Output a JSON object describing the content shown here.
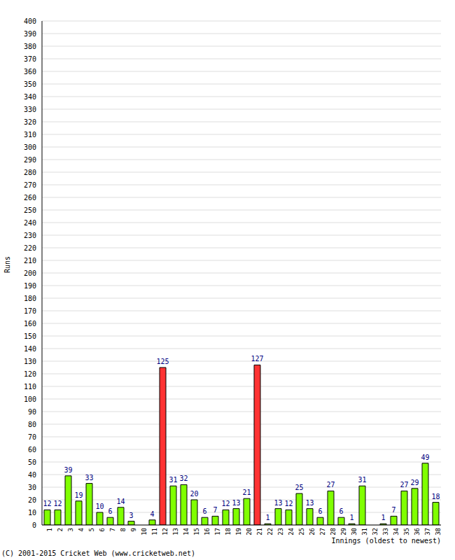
{
  "chart_data": {
    "type": "bar",
    "ylabel": "Runs",
    "xlabel": "Innings (oldest to newest)",
    "annotations": [
      "(C) 2001-2015 Cricket Web (www.cricketweb.net)"
    ],
    "categories": [
      "1",
      "2",
      "3",
      "4",
      "5",
      "6",
      "7",
      "8",
      "9",
      "10",
      "11",
      "12",
      "13",
      "14",
      "15",
      "16",
      "17",
      "18",
      "19",
      "20",
      "21",
      "22",
      "23",
      "24",
      "25",
      "26",
      "27",
      "28",
      "29",
      "30",
      "31",
      "32",
      "33",
      "34",
      "35",
      "36",
      "37",
      "38"
    ],
    "values": [
      12,
      12,
      39,
      19,
      33,
      10,
      6,
      14,
      3,
      0,
      4,
      125,
      31,
      32,
      20,
      6,
      7,
      12,
      13,
      21,
      127,
      1,
      13,
      12,
      25,
      13,
      6,
      27,
      6,
      1,
      31,
      0,
      1,
      7,
      27,
      29,
      49,
      18
    ],
    "colors": [
      "#80ff00",
      "#80ff00",
      "#80ff00",
      "#80ff00",
      "#80ff00",
      "#80ff00",
      "#80ff00",
      "#80ff00",
      "#80ff00",
      "#80ff00",
      "#80ff00",
      "#ff3333",
      "#80ff00",
      "#80ff00",
      "#80ff00",
      "#80ff00",
      "#80ff00",
      "#80ff00",
      "#80ff00",
      "#80ff00",
      "#ff3333",
      "#80ff00",
      "#80ff00",
      "#80ff00",
      "#80ff00",
      "#80ff00",
      "#80ff00",
      "#80ff00",
      "#80ff00",
      "#80ff00",
      "#80ff00",
      "#80ff00",
      "#80ff00",
      "#80ff00",
      "#80ff00",
      "#80ff00",
      "#80ff00",
      "#80ff00"
    ],
    "ylim": [
      0,
      400
    ],
    "yticks": [
      0,
      10,
      20,
      30,
      40,
      50,
      60,
      70,
      80,
      90,
      100,
      110,
      120,
      130,
      140,
      150,
      160,
      170,
      180,
      190,
      200,
      210,
      220,
      230,
      240,
      250,
      260,
      270,
      280,
      290,
      300,
      310,
      320,
      330,
      340,
      350,
      360,
      370,
      380,
      390,
      400
    ],
    "grid": true,
    "data_labels": true
  }
}
